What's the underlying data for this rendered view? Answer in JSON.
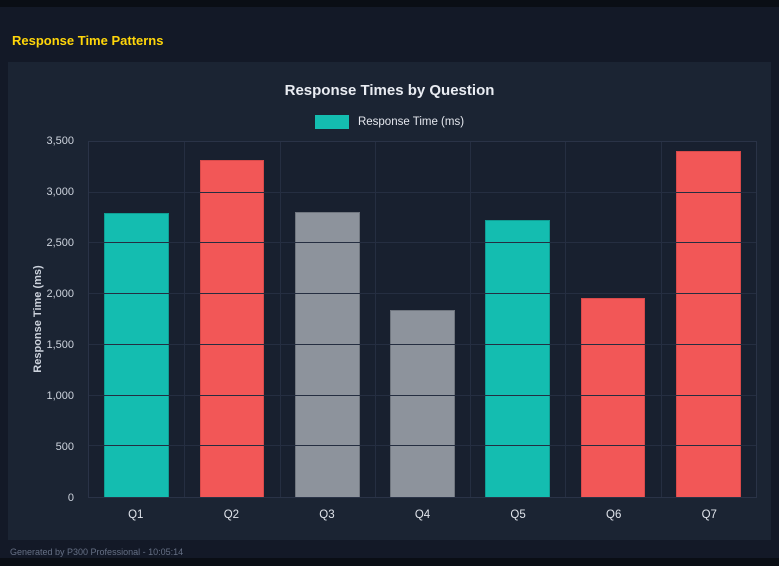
{
  "header": {
    "title": "Response Time Patterns"
  },
  "footer": {
    "text": "Generated by P300 Professional - 10:05:14"
  },
  "colors": {
    "accent_yellow": "#ffd60a",
    "page_bg": "#131927",
    "panel_bg": "#1b2433",
    "grid": "#252e41",
    "teal": "#14bdb0",
    "teal_border": "#0f9e93",
    "red": "#f25757",
    "red_border": "#d84a4a",
    "gray": "#8d939c",
    "gray_border": "#70767f"
  },
  "chart_data": {
    "type": "bar",
    "title": "Response Times by Question",
    "legend": "Response Time (ms)",
    "legend_position": "top",
    "xlabel": "",
    "ylabel": "Response Time (ms)",
    "categories": [
      "Q1",
      "Q2",
      "Q3",
      "Q4",
      "Q5",
      "Q6",
      "Q7"
    ],
    "values": [
      2800,
      3325,
      2810,
      1845,
      2730,
      1960,
      3410
    ],
    "bar_colors": [
      "teal",
      "red",
      "gray",
      "gray",
      "teal",
      "red",
      "red"
    ],
    "ylim": [
      0,
      3500
    ],
    "y_ticks": [
      "0",
      "500",
      "1,000",
      "1,500",
      "2,000",
      "2,500",
      "3,000",
      "3,500"
    ],
    "grid": true
  }
}
